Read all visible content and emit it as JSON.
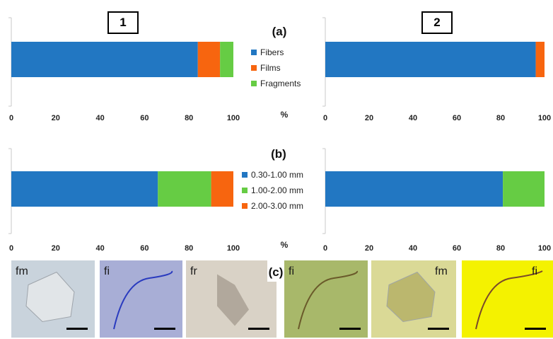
{
  "panel_numbers": [
    "1",
    "2"
  ],
  "panel_letters": {
    "a": "(a)",
    "b": "(b)",
    "c": "(c)"
  },
  "colors": {
    "blue": "#2277c2",
    "orange": "#f7650f",
    "green": "#66cc44",
    "axis": "#c8c8c8"
  },
  "chart_data": [
    {
      "type": "bar",
      "orientation": "horizontal",
      "stacked": true,
      "group": "(a)",
      "panel": "1",
      "series": [
        {
          "name": "Fibers",
          "values": [
            84
          ]
        },
        {
          "name": "Films",
          "values": [
            10
          ]
        },
        {
          "name": "Fragments",
          "values": [
            6
          ]
        }
      ],
      "xlabel": "%",
      "xlim": [
        0,
        100
      ],
      "xticks": [
        "0",
        "20",
        "40",
        "60",
        "80",
        "100"
      ]
    },
    {
      "type": "bar",
      "orientation": "horizontal",
      "stacked": true,
      "group": "(a)",
      "panel": "2",
      "series": [
        {
          "name": "Fibers",
          "values": [
            96
          ]
        },
        {
          "name": "Films",
          "values": [
            4
          ]
        },
        {
          "name": "Fragments",
          "values": [
            0
          ]
        }
      ],
      "xlim": [
        0,
        100
      ],
      "xticks": [
        "0",
        "20",
        "40",
        "60",
        "80",
        "100"
      ]
    },
    {
      "type": "bar",
      "orientation": "horizontal",
      "stacked": true,
      "group": "(b)",
      "panel": "1",
      "series": [
        {
          "name": "0.30-1.00 mm",
          "values": [
            66
          ]
        },
        {
          "name": "1.00-2.00 mm",
          "values": [
            24
          ]
        },
        {
          "name": "2.00-3.00 mm",
          "values": [
            10
          ]
        }
      ],
      "xlabel": "%",
      "xlim": [
        0,
        100
      ],
      "xticks": [
        "0",
        "20",
        "40",
        "60",
        "80",
        "100"
      ]
    },
    {
      "type": "bar",
      "orientation": "horizontal",
      "stacked": true,
      "group": "(b)",
      "panel": "2",
      "series": [
        {
          "name": "0.30-1.00 mm",
          "values": [
            81
          ]
        },
        {
          "name": "1.00-2.00 mm",
          "values": [
            19
          ]
        },
        {
          "name": "2.00-3.00 mm",
          "values": [
            0
          ]
        }
      ],
      "xlim": [
        0,
        100
      ],
      "xticks": [
        "0",
        "20",
        "40",
        "60",
        "80",
        "100"
      ]
    }
  ],
  "legend_a": [
    "Fibers",
    "Films",
    "Fragments"
  ],
  "legend_b": [
    "0.30-1.00 mm",
    "1.00-2.00 mm",
    "2.00-3.00 mm"
  ],
  "photos": [
    {
      "label": "fm",
      "bg": "#c9d3dc",
      "fg": "#e4e7ea"
    },
    {
      "label": "fi",
      "bg": "#a8aed6",
      "fg": "#2a3bbf"
    },
    {
      "label": "fr",
      "bg": "#d9d2c6",
      "fg": "#a9a194"
    },
    {
      "label": "fi",
      "bg": "#a8b86a",
      "fg": "#6a5a2a"
    },
    {
      "label": "fm",
      "bg": "#dad996",
      "fg": "#b8b46a"
    },
    {
      "label": "fi",
      "bg": "#f4f200",
      "fg": "#7a4a2a"
    }
  ]
}
